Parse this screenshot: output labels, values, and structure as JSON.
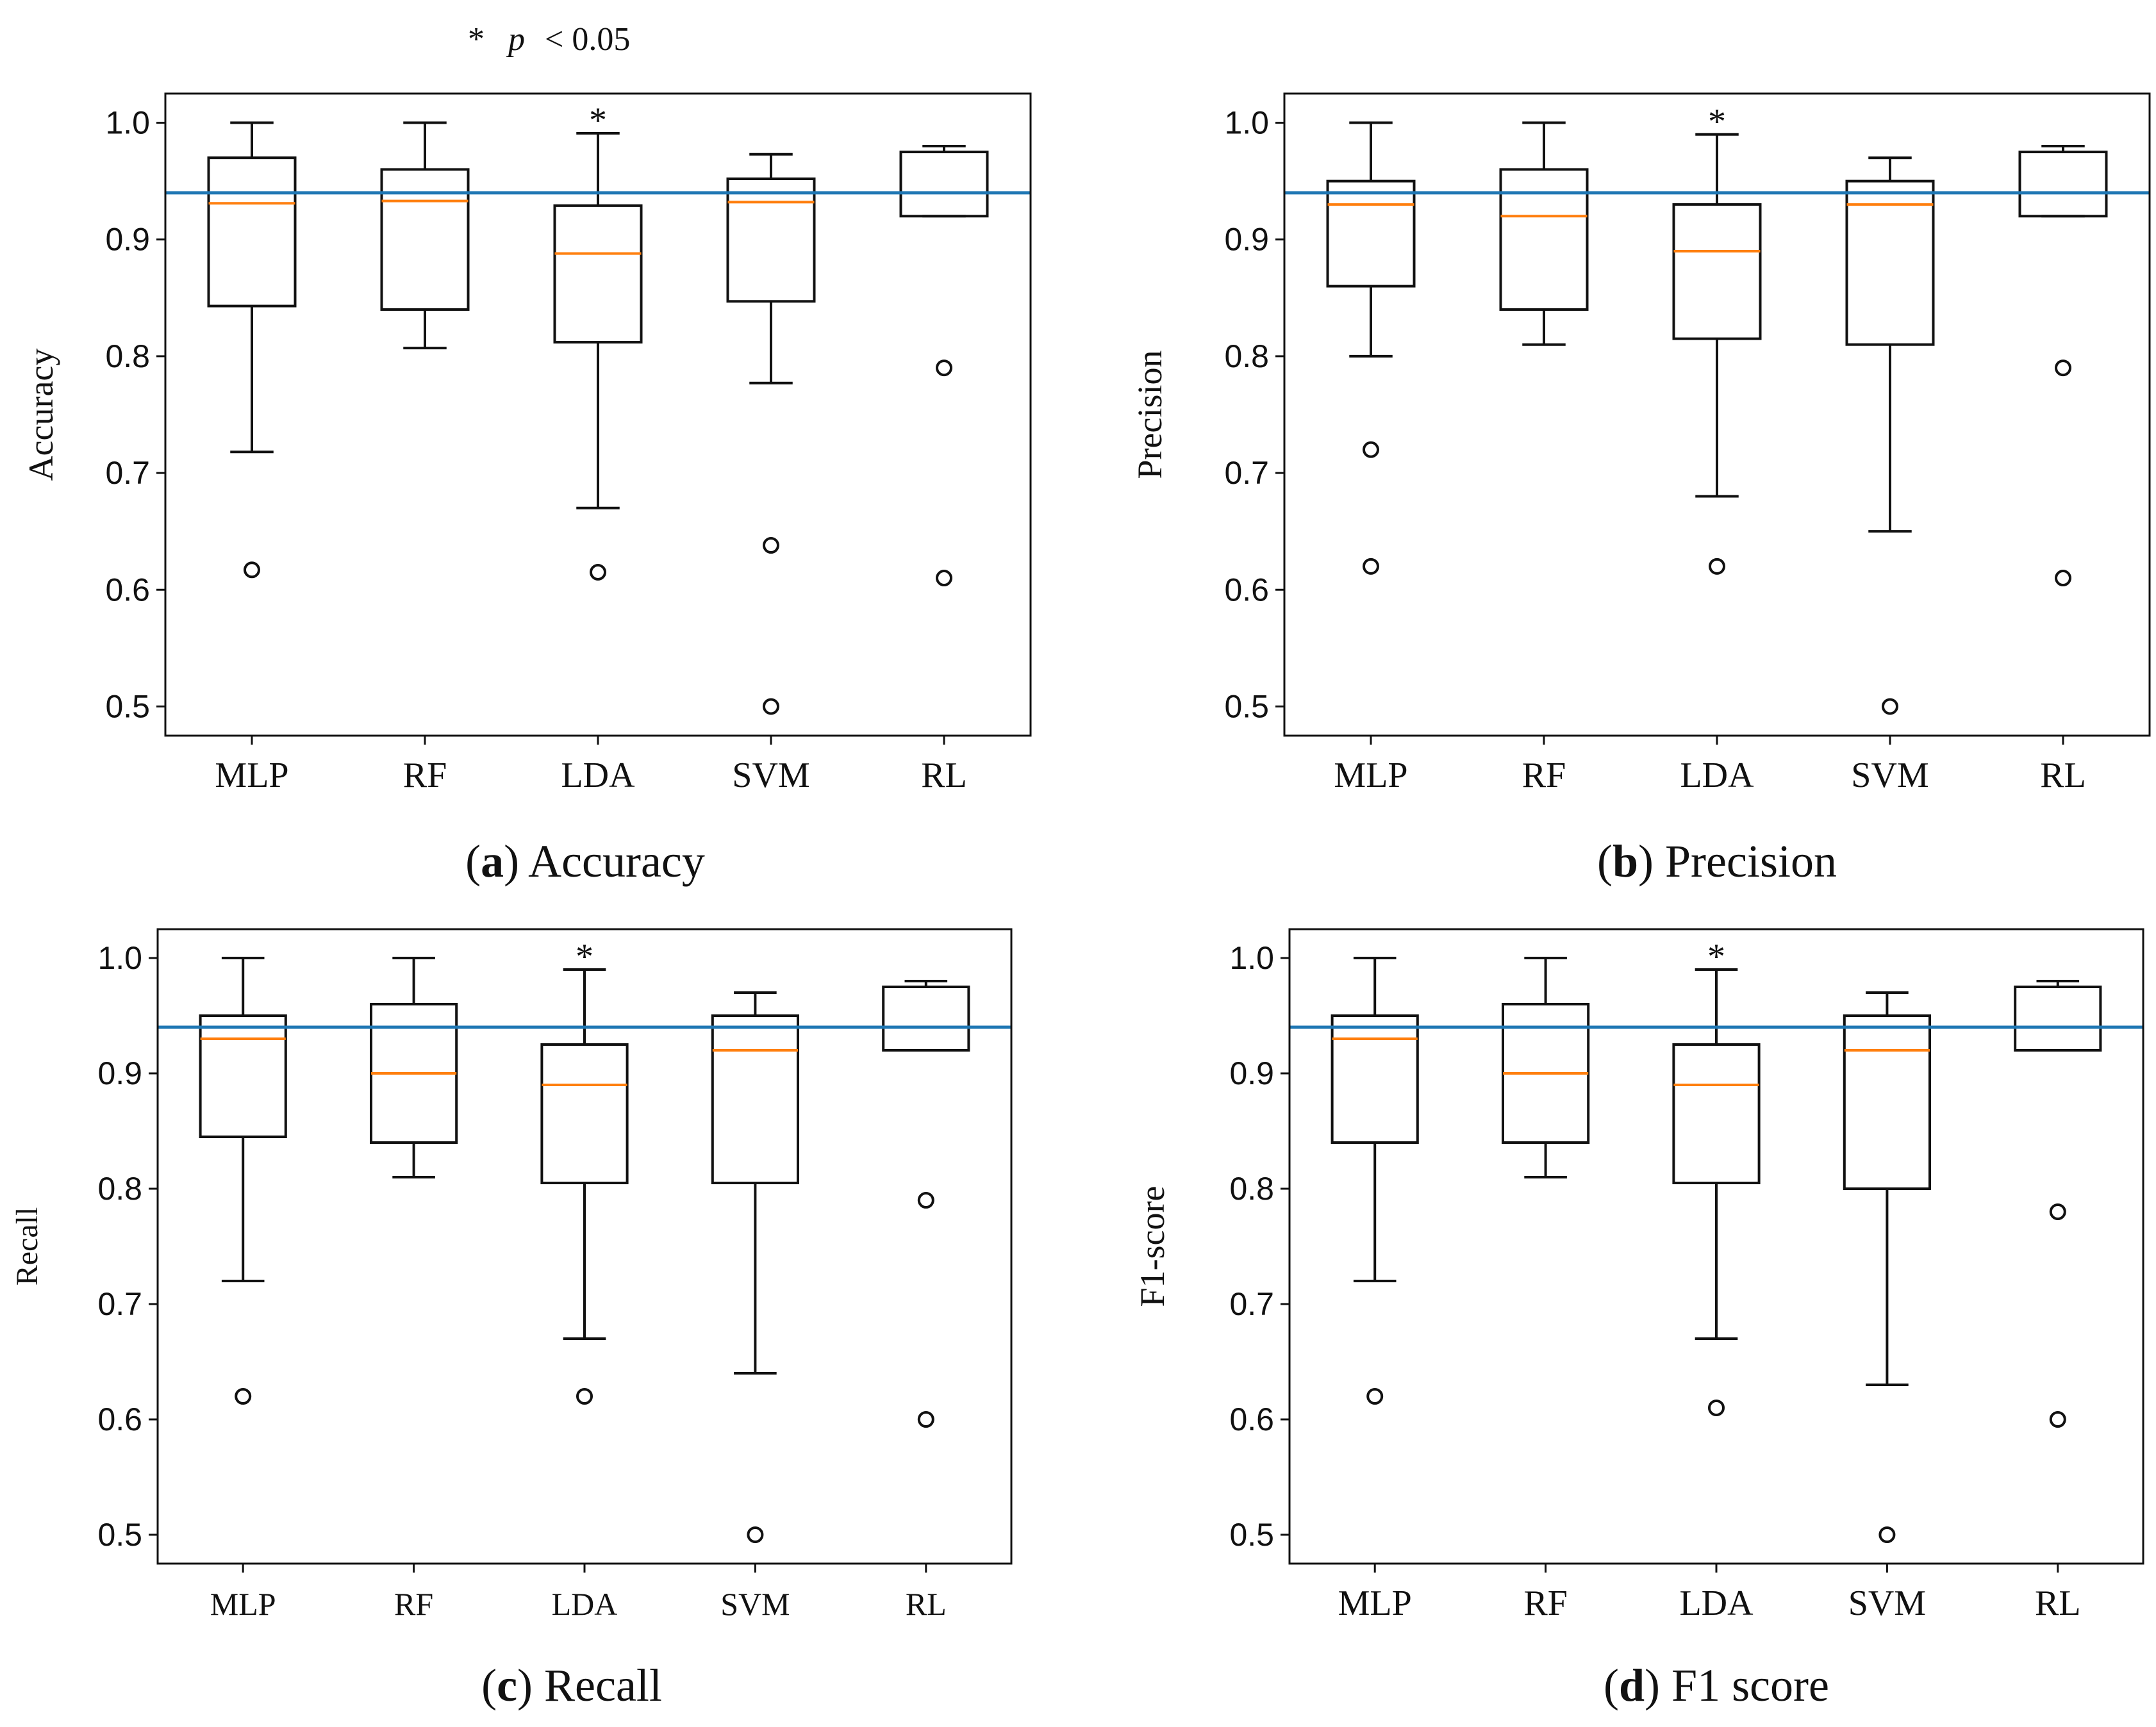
{
  "figure_note": {
    "star": "*",
    "p": "p",
    "rel": "< 0.05"
  },
  "chart_data": [
    {
      "type": "boxplot",
      "panel": "a",
      "caption_letter": "a",
      "caption_text": " Accuracy",
      "ylabel": "Accuracy",
      "ylim": [
        0.475,
        1.025
      ],
      "yticks": [
        "0.5",
        "0.6",
        "0.7",
        "0.8",
        "0.9",
        "1.0"
      ],
      "categories": [
        "MLP",
        "RF",
        "LDA",
        "SVM",
        "RL"
      ],
      "reference_line": 0.94,
      "significance_marker": "*",
      "significance_category": "LDA",
      "boxes": [
        {
          "whislo": 0.718,
          "q1": 0.843,
          "med": 0.931,
          "q3": 0.97,
          "whishi": 1.0,
          "fliers": [
            0.617
          ]
        },
        {
          "whislo": 0.807,
          "q1": 0.84,
          "med": 0.933,
          "q3": 0.96,
          "whishi": 1.0,
          "fliers": []
        },
        {
          "whislo": 0.67,
          "q1": 0.812,
          "med": 0.888,
          "q3": 0.929,
          "whishi": 0.991,
          "fliers": [
            0.615
          ]
        },
        {
          "whislo": 0.777,
          "q1": 0.847,
          "med": 0.932,
          "q3": 0.952,
          "whishi": 0.973,
          "fliers": [
            0.638,
            0.5
          ]
        },
        {
          "whislo": 0.92,
          "q1": 0.92,
          "med": 0.94,
          "q3": 0.975,
          "whishi": 0.98,
          "fliers": [
            0.79,
            0.61
          ]
        }
      ]
    },
    {
      "type": "boxplot",
      "panel": "b",
      "caption_letter": "b",
      "caption_text": " Precision",
      "ylabel": "Precision",
      "ylim": [
        0.475,
        1.025
      ],
      "yticks": [
        "0.5",
        "0.6",
        "0.7",
        "0.8",
        "0.9",
        "1.0"
      ],
      "categories": [
        "MLP",
        "RF",
        "LDA",
        "SVM",
        "RL"
      ],
      "reference_line": 0.94,
      "significance_marker": "*",
      "significance_category": "LDA",
      "boxes": [
        {
          "whislo": 0.8,
          "q1": 0.86,
          "med": 0.93,
          "q3": 0.95,
          "whishi": 1.0,
          "fliers": [
            0.72,
            0.62
          ]
        },
        {
          "whislo": 0.81,
          "q1": 0.84,
          "med": 0.92,
          "q3": 0.96,
          "whishi": 1.0,
          "fliers": []
        },
        {
          "whislo": 0.68,
          "q1": 0.815,
          "med": 0.89,
          "q3": 0.93,
          "whishi": 0.99,
          "fliers": [
            0.62
          ]
        },
        {
          "whislo": 0.65,
          "q1": 0.81,
          "med": 0.93,
          "q3": 0.95,
          "whishi": 0.97,
          "fliers": [
            0.5
          ]
        },
        {
          "whislo": 0.92,
          "q1": 0.92,
          "med": 0.94,
          "q3": 0.975,
          "whishi": 0.98,
          "fliers": [
            0.79,
            0.61
          ]
        }
      ]
    },
    {
      "type": "boxplot",
      "panel": "c",
      "caption_letter": "c",
      "caption_text": " Recall",
      "ylabel": "Recall",
      "ylim": [
        0.475,
        1.025
      ],
      "yticks": [
        "0.5",
        "0.6",
        "0.7",
        "0.8",
        "0.9",
        "1.0"
      ],
      "categories": [
        "MLP",
        "RF",
        "LDA",
        "SVM",
        "RL"
      ],
      "reference_line": 0.94,
      "significance_marker": "*",
      "significance_category": "LDA",
      "boxes": [
        {
          "whislo": 0.72,
          "q1": 0.845,
          "med": 0.93,
          "q3": 0.95,
          "whishi": 1.0,
          "fliers": [
            0.62
          ]
        },
        {
          "whislo": 0.81,
          "q1": 0.84,
          "med": 0.9,
          "q3": 0.96,
          "whishi": 1.0,
          "fliers": []
        },
        {
          "whislo": 0.67,
          "q1": 0.805,
          "med": 0.89,
          "q3": 0.925,
          "whishi": 0.99,
          "fliers": [
            0.62
          ]
        },
        {
          "whislo": 0.64,
          "q1": 0.805,
          "med": 0.92,
          "q3": 0.95,
          "whishi": 0.97,
          "fliers": [
            0.5
          ]
        },
        {
          "whislo": 0.92,
          "q1": 0.92,
          "med": 0.94,
          "q3": 0.975,
          "whishi": 0.98,
          "fliers": [
            0.79,
            0.6
          ]
        }
      ]
    },
    {
      "type": "boxplot",
      "panel": "d",
      "caption_letter": "d",
      "caption_text": " F1 score",
      "ylabel": "F1-score",
      "ylim": [
        0.475,
        1.025
      ],
      "yticks": [
        "0.5",
        "0.6",
        "0.7",
        "0.8",
        "0.9",
        "1.0"
      ],
      "categories": [
        "MLP",
        "RF",
        "LDA",
        "SVM",
        "RL"
      ],
      "reference_line": 0.94,
      "significance_marker": "*",
      "significance_category": "LDA",
      "boxes": [
        {
          "whislo": 0.72,
          "q1": 0.84,
          "med": 0.93,
          "q3": 0.95,
          "whishi": 1.0,
          "fliers": [
            0.62
          ]
        },
        {
          "whislo": 0.81,
          "q1": 0.84,
          "med": 0.9,
          "q3": 0.96,
          "whishi": 1.0,
          "fliers": []
        },
        {
          "whislo": 0.67,
          "q1": 0.805,
          "med": 0.89,
          "q3": 0.925,
          "whishi": 0.99,
          "fliers": [
            0.61
          ]
        },
        {
          "whislo": 0.63,
          "q1": 0.8,
          "med": 0.92,
          "q3": 0.95,
          "whishi": 0.97,
          "fliers": [
            0.5
          ]
        },
        {
          "whislo": 0.92,
          "q1": 0.92,
          "med": 0.94,
          "q3": 0.975,
          "whishi": 0.98,
          "fliers": [
            0.78,
            0.6
          ]
        }
      ]
    }
  ],
  "colors": {
    "box": "#111111",
    "median": "#ff7f0e",
    "reference": "#1f77b4"
  }
}
